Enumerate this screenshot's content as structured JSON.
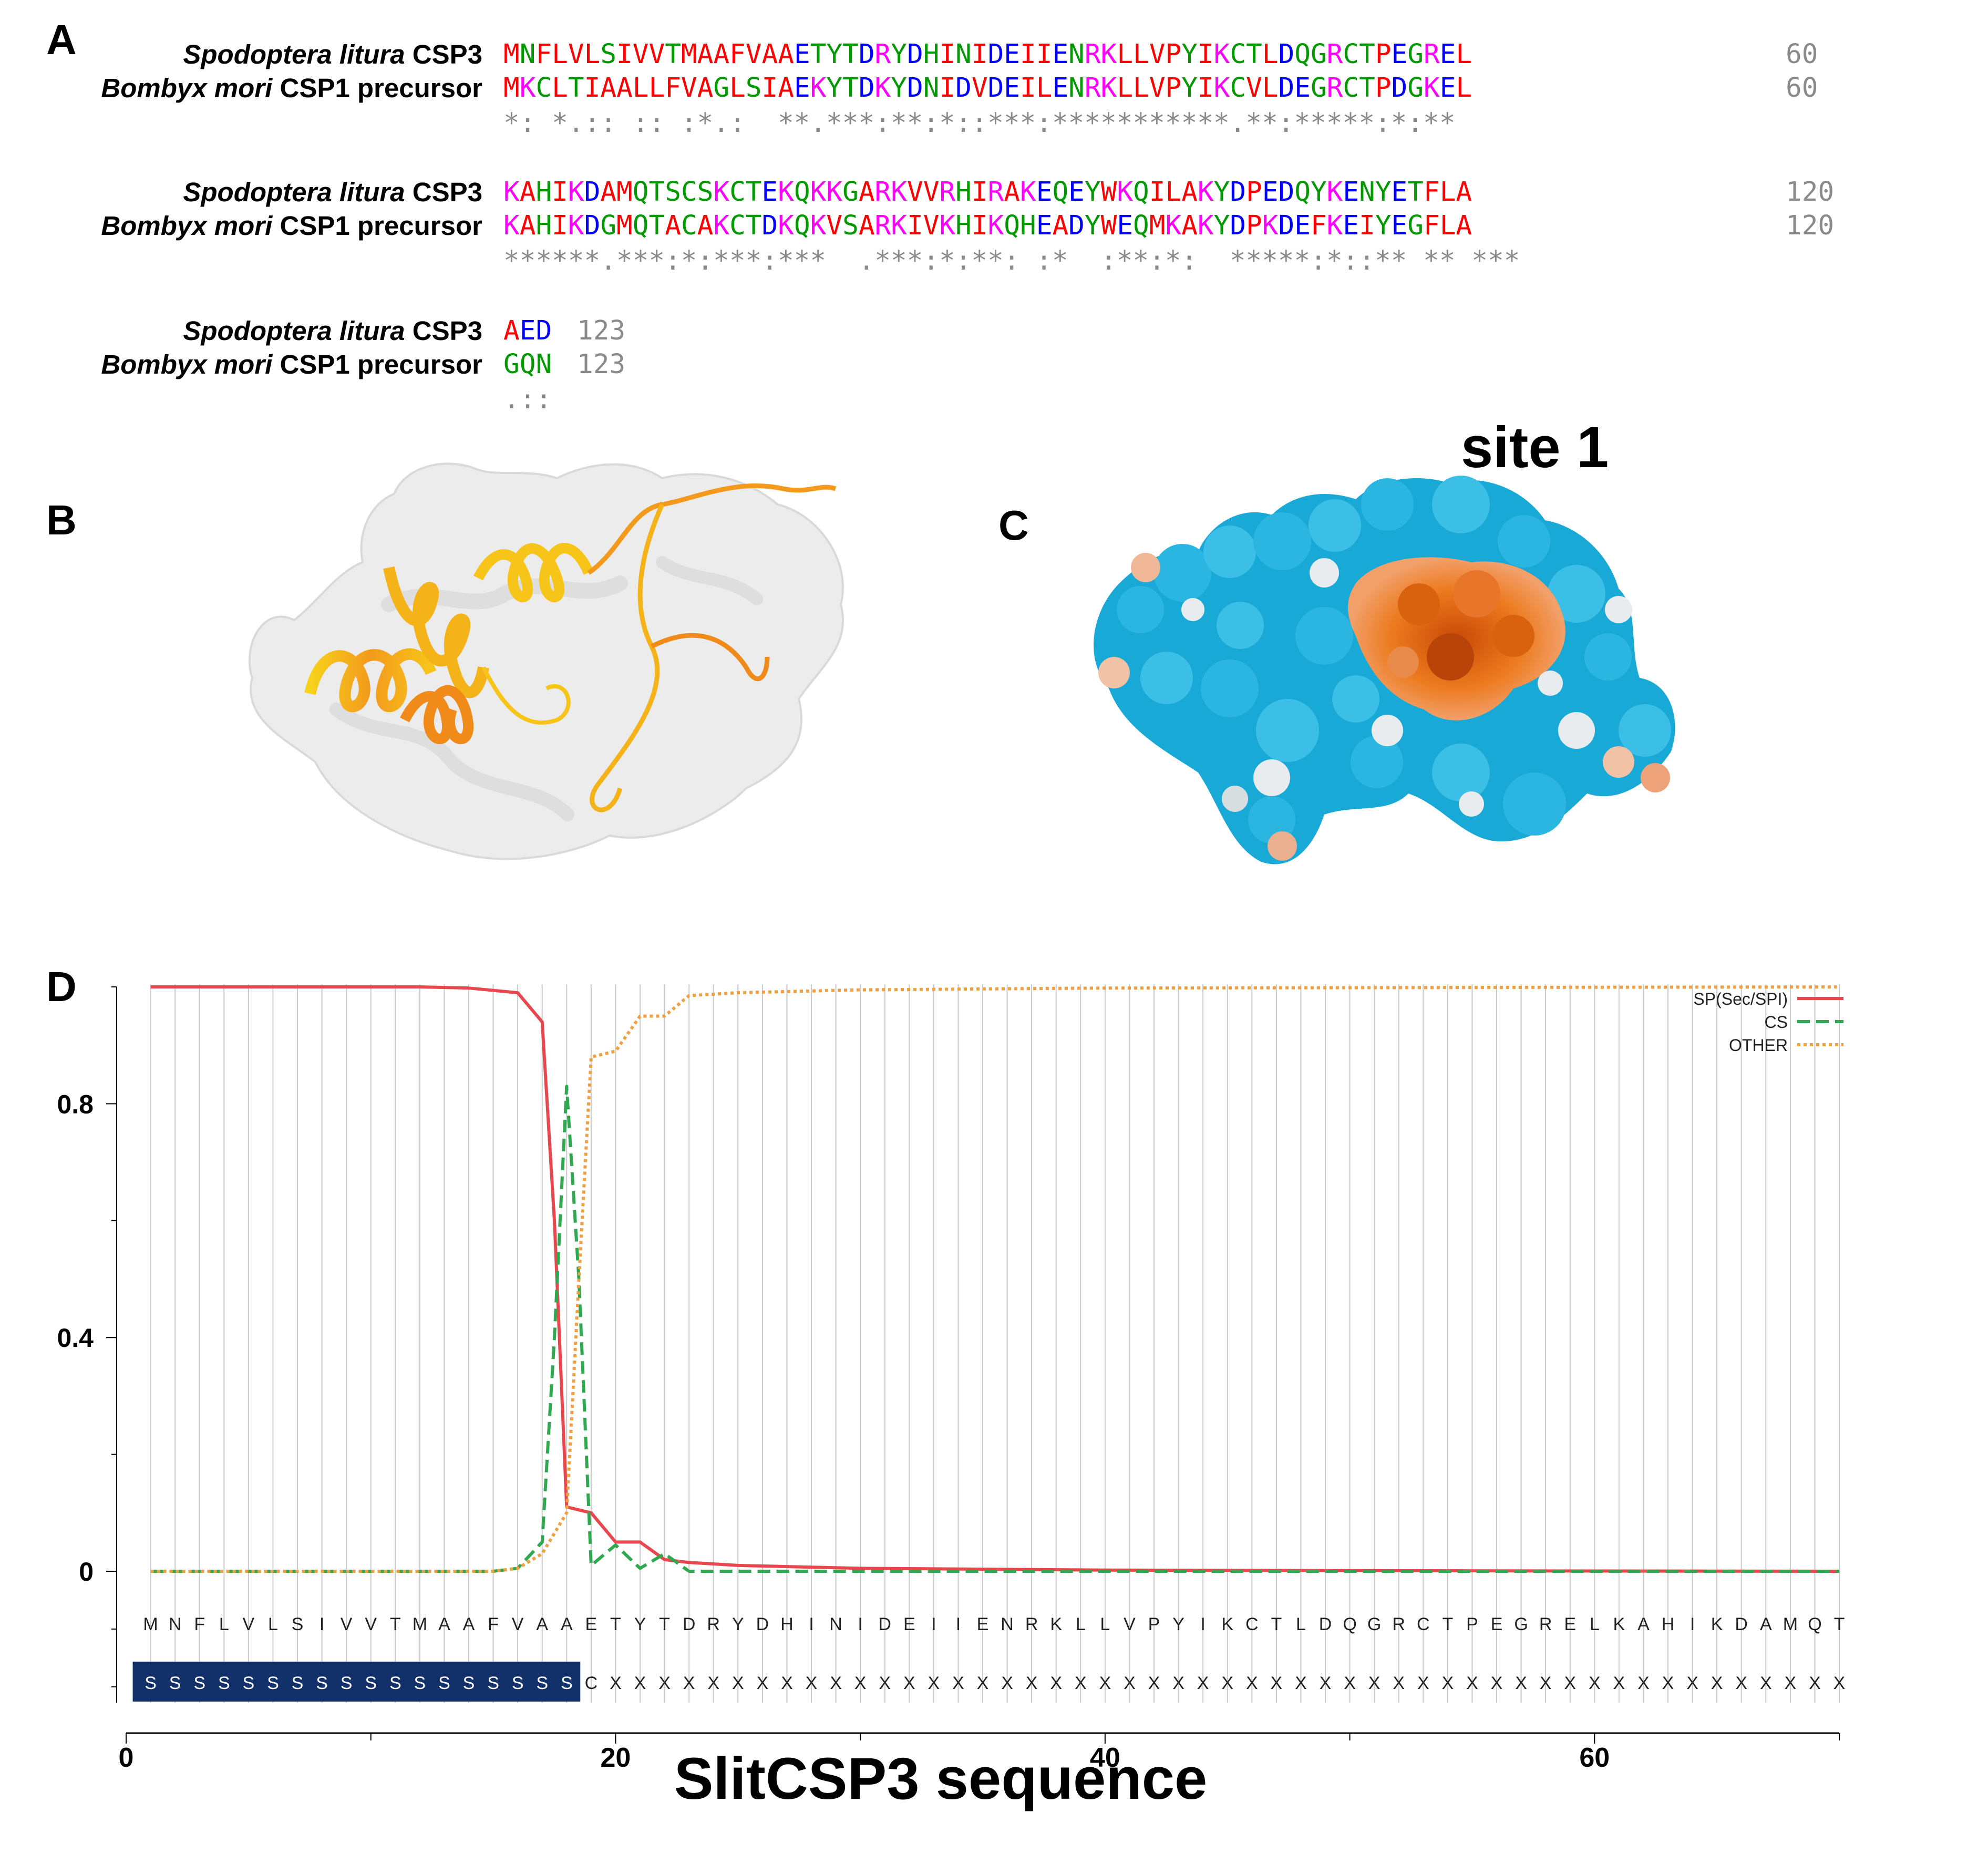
{
  "panels": {
    "a": "A",
    "b": "B",
    "c": "C",
    "d": "D"
  },
  "alignment": {
    "blocks": [
      {
        "rows": [
          {
            "name_italic": "Spodoptera litura",
            "name_rest": " CSP3",
            "seq": "MNFLVLSIVVTMAAFVAAETYTDRYDHINIDEIIENRKLLVPYIKCTLDQGRCTPEGREL",
            "end": "60"
          },
          {
            "name_italic": "Bombyx mori",
            "name_rest": " CSP1 precursor",
            "seq": "MKCLTIAALLFVAGLSIAEKYTDKYDNIDVDEILENRKLLVPYIKCVLDEGRCTPDGKEL",
            "end": "60"
          }
        ],
        "consensus": "*: *.:: :: :*.:  **.***:**:*::***:***********.**:*****:*:**"
      },
      {
        "rows": [
          {
            "name_italic": "Spodoptera litura",
            "name_rest": " CSP3",
            "seq": "KAHIKDAMQTSCSKCTEKQKKGARKVVRHIRAKEQEYWKQILAKYDPEDQYKENYETFLA",
            "end": "120"
          },
          {
            "name_italic": "Bombyx mori",
            "name_rest": " CSP1 precursor",
            "seq": "KAHIKDGMQTACAKCTDKQKVSARKIVKHIKQHEADYWEQMKAKYDPKDEFKEIYEGFLA",
            "end": "120"
          }
        ],
        "consensus": "******.***:*:***:***  .***:*:**: :*  :**:*:  *****:*::** ** ***"
      },
      {
        "rows": [
          {
            "name_italic": "Spodoptera litura",
            "name_rest": " CSP3",
            "seq": "AED",
            "end": "123"
          },
          {
            "name_italic": "Bombyx mori",
            "name_rest": " CSP1 precursor",
            "seq": "GQN",
            "end": "123"
          }
        ],
        "consensus": ".::"
      }
    ],
    "residue_colors": {
      "hydrophobic": "#ff0000",
      "acidic": "#0000ff",
      "basic": "#ff00ff",
      "polar_other": "#009900"
    }
  },
  "panel_c": {
    "site_label": "site 1"
  },
  "chart_data": {
    "type": "line",
    "title": "",
    "xlabel": "SlitCSP3 sequence",
    "ylabel": "",
    "xlim": [
      0,
      70
    ],
    "ylim": [
      0,
      1
    ],
    "x_ticks": [
      "0",
      "20",
      "40",
      "60"
    ],
    "y_ticks": [
      "0",
      "0.4",
      "0.8"
    ],
    "grid": "vertical lines at every residue",
    "legend_position": "top-right",
    "sequence": "MNFLVLSIVVTMAAFVAAETYTDRYDHINIDEIIENRKLLVPYIKCTLDQGRCTPEGRELKAHIKDAMQT",
    "region_labels": "SSSSSSSSSSSSSSSSSSCXXXXXXXXXXXXXXXXXXXXXXXXXXXXXXXXXXXXXXXXXXXXXXXXXXXX",
    "signal_region": [
      1,
      18
    ],
    "series": [
      {
        "name": "SP(Sec/SPI)",
        "color": "#e8474e",
        "dash": "solid",
        "points": [
          [
            1,
            1.0
          ],
          [
            12,
            1.0
          ],
          [
            14,
            0.998
          ],
          [
            16,
            0.99
          ],
          [
            17,
            0.94
          ],
          [
            17.5,
            0.6
          ],
          [
            18,
            0.11
          ],
          [
            19,
            0.1
          ],
          [
            20,
            0.05
          ],
          [
            21,
            0.05
          ],
          [
            22,
            0.02
          ],
          [
            23,
            0.015
          ],
          [
            25,
            0.01
          ],
          [
            30,
            0.005
          ],
          [
            40,
            0.002
          ],
          [
            50,
            0.001
          ],
          [
            70,
            0.0
          ]
        ]
      },
      {
        "name": "CS",
        "color": "#2fa84f",
        "dash": "dashed",
        "points": [
          [
            1,
            0.0
          ],
          [
            15,
            0.0
          ],
          [
            16,
            0.005
          ],
          [
            17,
            0.05
          ],
          [
            17.5,
            0.4
          ],
          [
            18,
            0.83
          ],
          [
            18.5,
            0.5
          ],
          [
            19,
            0.01
          ],
          [
            20,
            0.045
          ],
          [
            21,
            0.005
          ],
          [
            22,
            0.03
          ],
          [
            23,
            0.0
          ],
          [
            70,
            0.0
          ]
        ]
      },
      {
        "name": "OTHER",
        "color": "#f0a040",
        "dash": "dotted",
        "points": [
          [
            1,
            0.0
          ],
          [
            15,
            0.0
          ],
          [
            16,
            0.005
          ],
          [
            17,
            0.03
          ],
          [
            18,
            0.1
          ],
          [
            18.5,
            0.5
          ],
          [
            19,
            0.88
          ],
          [
            20,
            0.89
          ],
          [
            21,
            0.95
          ],
          [
            22,
            0.95
          ],
          [
            23,
            0.985
          ],
          [
            25,
            0.99
          ],
          [
            30,
            0.995
          ],
          [
            40,
            0.998
          ],
          [
            70,
            1.0
          ]
        ]
      }
    ]
  }
}
